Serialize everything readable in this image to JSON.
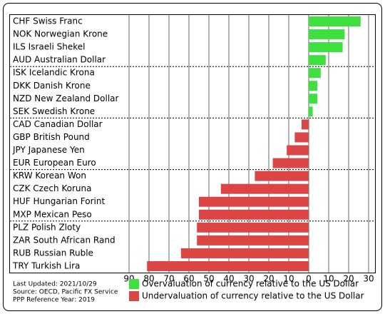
{
  "chart_data": {
    "type": "bar",
    "orientation": "horizontal",
    "categories": [
      "CHF Swiss Franc",
      "NOK Norwegian Krone",
      "ILS Israeli Shekel",
      "AUD Australian Dollar",
      "ISK Icelandic Krona",
      "DKK Danish Krone",
      "NZD New Zealand Dollar",
      "SEK Swedish Krone",
      "CAD Canadian Dollar",
      "GBP British Pound",
      "JPY Japanese Yen",
      "EUR European Euro",
      "KRW Korean Won",
      "CZK Czech Koruna",
      "HUF Hungarian Forint",
      "MXP Mexican Peso",
      "PLZ Polish Zloty",
      "ZAR South African Rand",
      "RUB Russian Ruble",
      "TRY Turkish Lira"
    ],
    "series": [
      {
        "name": "Overvaluation of currency relative to the US Dollar",
        "color": "#3ee03e",
        "values": [
          26,
          18,
          17,
          8.5,
          6,
          4.3,
          4.3,
          2,
          null,
          null,
          null,
          null,
          null,
          null,
          null,
          null,
          null,
          null,
          null,
          null
        ]
      },
      {
        "name": "Undervaluation of currency relative to the US Dollar",
        "color": "#dc4545",
        "values": [
          null,
          null,
          null,
          null,
          null,
          null,
          null,
          null,
          -3.6,
          -7,
          -11,
          -18,
          -27,
          -44,
          -55,
          -55,
          -56,
          -56,
          -64,
          -81
        ]
      }
    ],
    "xlim": [
      -90,
      30
    ],
    "xticks": [
      {
        "value": -90,
        "label": "90"
      },
      {
        "value": -80,
        "label": "80"
      },
      {
        "value": -70,
        "label": "70"
      },
      {
        "value": -60,
        "label": "60"
      },
      {
        "value": -50,
        "label": "50"
      },
      {
        "value": -40,
        "label": "40"
      },
      {
        "value": -30,
        "label": "30"
      },
      {
        "value": -20,
        "label": "20"
      },
      {
        "value": -10,
        "label": "10"
      },
      0,
      10,
      20,
      30
    ],
    "grid": true,
    "notes": [
      "Last Updated: 2021/10/29",
      "Source: OECD, Pacific FX Service",
      "PPP Reference Year: 2019"
    ]
  }
}
